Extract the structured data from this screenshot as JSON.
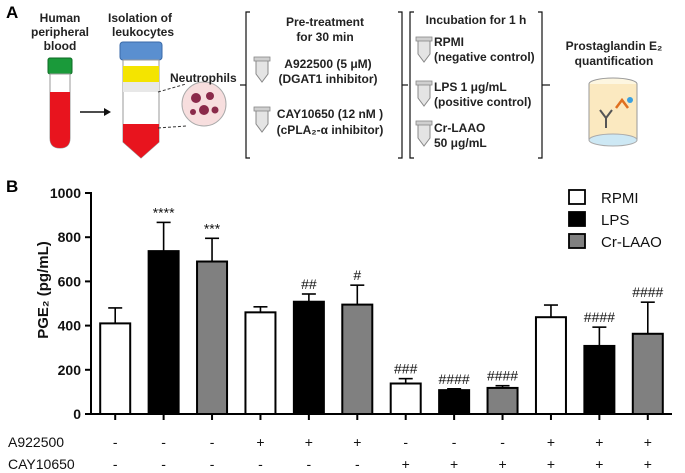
{
  "panel_a": {
    "letter": "A",
    "blood_label": [
      "Human",
      "peripheral",
      "blood"
    ],
    "isolation_label": [
      "Isolation of",
      "leukocytes"
    ],
    "neutrophils_label": "Neutrophils",
    "pretreatment": {
      "title": [
        "Pre-treatment",
        "for 30 min"
      ],
      "drug1": [
        "A922500 (5 μM)",
        "(DGAT1 inhibitor)"
      ],
      "drug2": [
        "CAY10650 (12 nM )",
        "(cPLA₂-α inhibitor)"
      ]
    },
    "incubation": {
      "title": "Incubation for 1 h",
      "cond1": [
        "RPMI",
        "(negative control)"
      ],
      "cond2": [
        "LPS 1 μg/mL",
        "(positive control)"
      ],
      "cond3": [
        "Cr-LAAO",
        "50 μg/mL"
      ]
    },
    "quantification": [
      "Prostaglandin E₂",
      "quantification"
    ],
    "colors": {
      "cap_green": "#1a9a3a",
      "blood_red": "#e8141e",
      "cap_blue": "#5a8fd0",
      "band_yellow": "#f4e400",
      "cell_purple": "#8a2a4a"
    }
  },
  "chart_data": {
    "panel_letter": "B",
    "type": "bar",
    "ylabel": "PGE₂ (pg/mL)",
    "ylim": [
      0,
      1000
    ],
    "yticks": [
      "0",
      "200",
      "400",
      "600",
      "800",
      "1000"
    ],
    "series_names": [
      "RPMI",
      "LPS",
      "Cr-LAAO"
    ],
    "series_colors": [
      "#ffffff",
      "#000000",
      "#808080"
    ],
    "groups": [
      {
        "values": [
          410,
          737,
          690
        ],
        "errors": [
          70,
          130,
          105
        ],
        "labels": [
          "",
          "****",
          "***"
        ]
      },
      {
        "values": [
          460,
          508,
          495
        ],
        "errors": [
          25,
          35,
          88
        ],
        "labels": [
          "",
          "##",
          "#"
        ]
      },
      {
        "values": [
          138,
          108,
          118
        ],
        "errors": [
          22,
          6,
          10
        ],
        "labels": [
          "###",
          "####",
          "####"
        ]
      },
      {
        "values": [
          438,
          308,
          363
        ],
        "errors": [
          55,
          85,
          143
        ],
        "labels": [
          "",
          "####",
          "####"
        ]
      }
    ],
    "conditions": [
      {
        "name": "A922500",
        "marks": [
          "-",
          "-",
          "-",
          "+",
          "+",
          "+",
          "-",
          "-",
          "-",
          "+",
          "+",
          "+"
        ]
      },
      {
        "name": "CAY10650",
        "marks": [
          "-",
          "-",
          "-",
          "-",
          "-",
          "-",
          "+",
          "+",
          "+",
          "+",
          "+",
          "+"
        ]
      }
    ]
  }
}
